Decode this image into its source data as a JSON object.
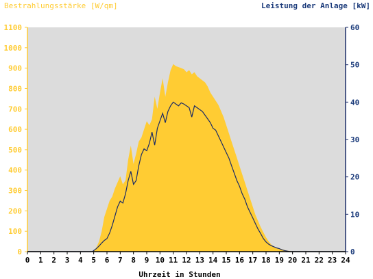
{
  "chart_data": {
    "type": "area",
    "left_axis_label": "Bestrahlungsstärke [W/qm]",
    "right_axis_label": "Leistung der Anlage [kW]",
    "xlabel": "Uhrzeit in Stunden",
    "xlim": [
      0,
      24
    ],
    "x_ticks": [
      "0",
      "1",
      "2",
      "3",
      "4",
      "5",
      "6",
      "7",
      "8",
      "9",
      "10",
      "11",
      "12",
      "13",
      "14",
      "15",
      "16",
      "17",
      "18",
      "19",
      "20",
      "21",
      "22",
      "23",
      "24"
    ],
    "left_ylim": [
      0,
      1100
    ],
    "left_ticks": [
      "0",
      "100",
      "200",
      "300",
      "400",
      "500",
      "600",
      "700",
      "800",
      "900",
      "1000",
      "1100"
    ],
    "right_ylim": [
      0,
      60
    ],
    "right_ticks": [
      "0",
      "10",
      "20",
      "30",
      "40",
      "50",
      "60"
    ],
    "grid": false,
    "colors": {
      "irradiance": "#ffcc33",
      "power": "#1a2b66",
      "plot_bg": "#dcdcdc",
      "left_axis_text": "#ffcc33",
      "right_axis_text": "#1a3a7a"
    },
    "series": [
      {
        "name": "Bestrahlungsstärke [W/qm]",
        "axis": "left",
        "style": "filled-area",
        "x": [
          0,
          4.8,
          5.0,
          5.2,
          5.4,
          5.6,
          5.8,
          6.0,
          6.2,
          6.4,
          6.6,
          6.8,
          7.0,
          7.2,
          7.4,
          7.6,
          7.8,
          8.0,
          8.2,
          8.4,
          8.6,
          8.8,
          9.0,
          9.2,
          9.4,
          9.6,
          9.8,
          10.0,
          10.2,
          10.4,
          10.6,
          10.8,
          11.0,
          11.2,
          11.4,
          11.6,
          11.8,
          12.0,
          12.2,
          12.4,
          12.6,
          12.8,
          13.0,
          13.2,
          13.4,
          13.6,
          13.8,
          14.0,
          14.2,
          14.4,
          14.6,
          14.8,
          15.0,
          15.2,
          15.4,
          15.6,
          15.8,
          16.0,
          16.2,
          16.4,
          16.6,
          16.8,
          17.0,
          17.2,
          17.4,
          17.6,
          17.8,
          18.0,
          18.2,
          18.4,
          18.6,
          18.8,
          19.0,
          19.2,
          19.4,
          19.6,
          19.8,
          20.0,
          20.2,
          24
        ],
        "values": [
          0,
          0,
          5,
          20,
          50,
          100,
          170,
          210,
          250,
          270,
          310,
          340,
          370,
          330,
          350,
          450,
          520,
          430,
          480,
          540,
          560,
          600,
          640,
          620,
          650,
          760,
          700,
          780,
          850,
          760,
          830,
          890,
          920,
          910,
          905,
          900,
          895,
          880,
          890,
          870,
          880,
          860,
          850,
          840,
          830,
          810,
          780,
          760,
          740,
          720,
          690,
          660,
          620,
          580,
          540,
          500,
          460,
          420,
          380,
          340,
          300,
          260,
          220,
          180,
          150,
          120,
          95,
          70,
          50,
          35,
          25,
          20,
          15,
          12,
          8,
          5,
          3,
          0,
          0,
          0
        ]
      },
      {
        "name": "Leistung der Anlage [kW]",
        "axis": "right",
        "style": "line",
        "x": [
          0,
          4.9,
          5.0,
          5.2,
          5.4,
          5.6,
          5.8,
          6.0,
          6.2,
          6.4,
          6.6,
          6.8,
          7.0,
          7.2,
          7.4,
          7.6,
          7.8,
          8.0,
          8.2,
          8.4,
          8.6,
          8.8,
          9.0,
          9.2,
          9.4,
          9.6,
          9.8,
          10.0,
          10.2,
          10.4,
          10.6,
          10.8,
          11.0,
          11.2,
          11.4,
          11.6,
          11.8,
          12.0,
          12.2,
          12.4,
          12.6,
          12.8,
          13.0,
          13.2,
          13.4,
          13.6,
          13.8,
          14.0,
          14.2,
          14.4,
          14.6,
          14.8,
          15.0,
          15.2,
          15.4,
          15.6,
          15.8,
          16.0,
          16.2,
          16.4,
          16.6,
          16.8,
          17.0,
          17.2,
          17.4,
          17.6,
          17.8,
          18.0,
          18.2,
          18.4,
          18.6,
          18.8,
          19.0,
          19.2,
          19.4,
          19.6,
          19.8,
          20.0,
          20.2,
          24
        ],
        "values": [
          0,
          0,
          0.3,
          0.8,
          1.5,
          2.3,
          3.0,
          3.5,
          5.0,
          7.0,
          9.5,
          12.0,
          13.5,
          13.0,
          15.5,
          19.0,
          21.5,
          18.0,
          19.0,
          23.0,
          26.0,
          27.5,
          27.0,
          29.0,
          32.0,
          28.5,
          33.0,
          35.0,
          37.0,
          34.5,
          37.5,
          39.0,
          40.0,
          39.5,
          39.0,
          39.8,
          39.5,
          39.0,
          38.5,
          36.0,
          39.0,
          38.5,
          38.0,
          37.5,
          36.5,
          35.5,
          34.5,
          33.0,
          32.5,
          31.0,
          29.5,
          28.0,
          26.5,
          25.0,
          23.0,
          21.0,
          19.0,
          17.5,
          15.5,
          14.0,
          12.0,
          10.5,
          9.0,
          7.5,
          6.0,
          4.8,
          3.5,
          2.6,
          2.0,
          1.6,
          1.3,
          1.0,
          0.8,
          0.5,
          0.3,
          0.15,
          0,
          0,
          0,
          0
        ]
      }
    ]
  }
}
